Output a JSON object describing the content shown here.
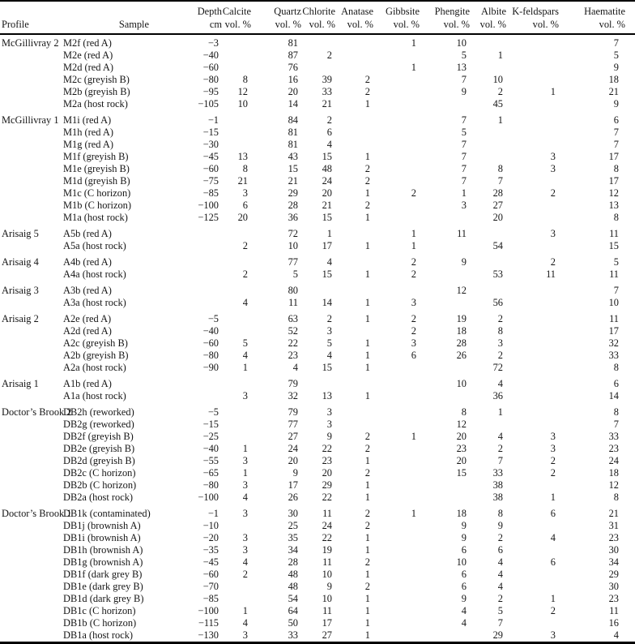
{
  "table": {
    "columns": [
      {
        "id": "profile",
        "label": "Profile",
        "sub": ""
      },
      {
        "id": "sample",
        "label": "Sample",
        "sub": ""
      },
      {
        "id": "depth",
        "label": "Depth",
        "sub": "cm"
      },
      {
        "id": "calcite",
        "label": "Calcite",
        "sub": "vol. %"
      },
      {
        "id": "quartz",
        "label": "Quartz",
        "sub": "vol. %"
      },
      {
        "id": "chlorite",
        "label": "Chlorite",
        "sub": "vol. %"
      },
      {
        "id": "anatase",
        "label": "Anatase",
        "sub": "vol. %"
      },
      {
        "id": "gibbsite",
        "label": "Gibbsite",
        "sub": "vol. %"
      },
      {
        "id": "phengite",
        "label": "Phengite",
        "sub": "vol. %"
      },
      {
        "id": "albite",
        "label": "Albite",
        "sub": "vol. %"
      },
      {
        "id": "kfeldspars",
        "label": "K-feldspars",
        "sub": "vol. %"
      },
      {
        "id": "haematite",
        "label": "Haematite",
        "sub": "vol. %"
      }
    ],
    "groups": [
      {
        "profile": "McGillivray 2",
        "rows": [
          {
            "sample": "M2f (red A)",
            "depth": "−3",
            "calcite": "",
            "quartz": "81",
            "chlorite": "",
            "anatase": "",
            "gibbsite": "1",
            "phengite": "10",
            "albite": "",
            "kfeldspars": "",
            "haematite": "7"
          },
          {
            "sample": "M2e (red A)",
            "depth": "−40",
            "calcite": "",
            "quartz": "87",
            "chlorite": "2",
            "anatase": "",
            "gibbsite": "",
            "phengite": "5",
            "albite": "1",
            "kfeldspars": "",
            "haematite": "5"
          },
          {
            "sample": "M2d (red A)",
            "depth": "−60",
            "calcite": "",
            "quartz": "76",
            "chlorite": "",
            "anatase": "",
            "gibbsite": "1",
            "phengite": "13",
            "albite": "",
            "kfeldspars": "",
            "haematite": "9"
          },
          {
            "sample": "M2c (greyish B)",
            "depth": "−80",
            "calcite": "8",
            "quartz": "16",
            "chlorite": "39",
            "anatase": "2",
            "gibbsite": "",
            "phengite": "7",
            "albite": "10",
            "kfeldspars": "",
            "haematite": "18"
          },
          {
            "sample": "M2b (greyish B)",
            "depth": "−95",
            "calcite": "12",
            "quartz": "20",
            "chlorite": "33",
            "anatase": "2",
            "gibbsite": "",
            "phengite": "9",
            "albite": "2",
            "kfeldspars": "1",
            "haematite": "21"
          },
          {
            "sample": "M2a (host rock)",
            "depth": "−105",
            "calcite": "10",
            "quartz": "14",
            "chlorite": "21",
            "anatase": "1",
            "gibbsite": "",
            "phengite": "",
            "albite": "45",
            "kfeldspars": "",
            "haematite": "9"
          }
        ]
      },
      {
        "profile": "McGillivray 1",
        "rows": [
          {
            "sample": "M1i (red A)",
            "depth": "−1",
            "calcite": "",
            "quartz": "84",
            "chlorite": "2",
            "anatase": "",
            "gibbsite": "",
            "phengite": "7",
            "albite": "1",
            "kfeldspars": "",
            "haematite": "6"
          },
          {
            "sample": "M1h (red A)",
            "depth": "−15",
            "calcite": "",
            "quartz": "81",
            "chlorite": "6",
            "anatase": "",
            "gibbsite": "",
            "phengite": "5",
            "albite": "",
            "kfeldspars": "",
            "haematite": "7"
          },
          {
            "sample": "M1g (red A)",
            "depth": "−30",
            "calcite": "",
            "quartz": "81",
            "chlorite": "4",
            "anatase": "",
            "gibbsite": "",
            "phengite": "7",
            "albite": "",
            "kfeldspars": "",
            "haematite": "7"
          },
          {
            "sample": "M1f (greyish B)",
            "depth": "−45",
            "calcite": "13",
            "quartz": "43",
            "chlorite": "15",
            "anatase": "1",
            "gibbsite": "",
            "phengite": "7",
            "albite": "",
            "kfeldspars": "3",
            "haematite": "17"
          },
          {
            "sample": "M1e (greyish B)",
            "depth": "−60",
            "calcite": "8",
            "quartz": "15",
            "chlorite": "48",
            "anatase": "2",
            "gibbsite": "",
            "phengite": "7",
            "albite": "8",
            "kfeldspars": "3",
            "haematite": "8"
          },
          {
            "sample": "M1d (greyish B)",
            "depth": "−75",
            "calcite": "21",
            "quartz": "21",
            "chlorite": "24",
            "anatase": "2",
            "gibbsite": "",
            "phengite": "7",
            "albite": "7",
            "kfeldspars": "",
            "haematite": "17"
          },
          {
            "sample": "M1c (C horizon)",
            "depth": "−85",
            "calcite": "3",
            "quartz": "29",
            "chlorite": "20",
            "anatase": "1",
            "gibbsite": "2",
            "phengite": "1",
            "albite": "28",
            "kfeldspars": "2",
            "haematite": "12"
          },
          {
            "sample": "M1b (C horizon)",
            "depth": "−100",
            "calcite": "6",
            "quartz": "28",
            "chlorite": "21",
            "anatase": "2",
            "gibbsite": "",
            "phengite": "3",
            "albite": "27",
            "kfeldspars": "",
            "haematite": "13"
          },
          {
            "sample": "M1a (host rock)",
            "depth": "−125",
            "calcite": "20",
            "quartz": "36",
            "chlorite": "15",
            "anatase": "1",
            "gibbsite": "",
            "phengite": "",
            "albite": "20",
            "kfeldspars": "",
            "haematite": "8"
          }
        ]
      },
      {
        "profile": "Arisaig 5",
        "rows": [
          {
            "sample": "A5b (red A)",
            "depth": "",
            "calcite": "",
            "quartz": "72",
            "chlorite": "1",
            "anatase": "",
            "gibbsite": "1",
            "phengite": "11",
            "albite": "",
            "kfeldspars": "3",
            "haematite": "11"
          },
          {
            "sample": "A5a (host rock)",
            "depth": "",
            "calcite": "2",
            "quartz": "10",
            "chlorite": "17",
            "anatase": "1",
            "gibbsite": "1",
            "phengite": "",
            "albite": "54",
            "kfeldspars": "",
            "haematite": "15"
          }
        ]
      },
      {
        "profile": "Arisaig 4",
        "rows": [
          {
            "sample": "A4b (red A)",
            "depth": "",
            "calcite": "",
            "quartz": "77",
            "chlorite": "4",
            "anatase": "",
            "gibbsite": "2",
            "phengite": "9",
            "albite": "",
            "kfeldspars": "2",
            "haematite": "5"
          },
          {
            "sample": "A4a (host rock)",
            "depth": "",
            "calcite": "2",
            "quartz": "5",
            "chlorite": "15",
            "anatase": "1",
            "gibbsite": "2",
            "phengite": "",
            "albite": "53",
            "kfeldspars": "11",
            "haematite": "11"
          }
        ]
      },
      {
        "profile": "Arisaig 3",
        "rows": [
          {
            "sample": "A3b (red A)",
            "depth": "",
            "calcite": "",
            "quartz": "80",
            "chlorite": "",
            "anatase": "",
            "gibbsite": "",
            "phengite": "12",
            "albite": "",
            "kfeldspars": "",
            "haematite": "7"
          },
          {
            "sample": "A3a (host rock)",
            "depth": "",
            "calcite": "4",
            "quartz": "11",
            "chlorite": "14",
            "anatase": "1",
            "gibbsite": "3",
            "phengite": "",
            "albite": "56",
            "kfeldspars": "",
            "haematite": "10"
          }
        ]
      },
      {
        "profile": "Arisaig 2",
        "rows": [
          {
            "sample": "A2e (red A)",
            "depth": "−5",
            "calcite": "",
            "quartz": "63",
            "chlorite": "2",
            "anatase": "1",
            "gibbsite": "2",
            "phengite": "19",
            "albite": "2",
            "kfeldspars": "",
            "haematite": "11"
          },
          {
            "sample": "A2d (red A)",
            "depth": "−40",
            "calcite": "",
            "quartz": "52",
            "chlorite": "3",
            "anatase": "",
            "gibbsite": "2",
            "phengite": "18",
            "albite": "8",
            "kfeldspars": "",
            "haematite": "17"
          },
          {
            "sample": "A2c (greyish B)",
            "depth": "−60",
            "calcite": "5",
            "quartz": "22",
            "chlorite": "5",
            "anatase": "1",
            "gibbsite": "3",
            "phengite": "28",
            "albite": "3",
            "kfeldspars": "",
            "haematite": "32"
          },
          {
            "sample": "A2b (greyish B)",
            "depth": "−80",
            "calcite": "4",
            "quartz": "23",
            "chlorite": "4",
            "anatase": "1",
            "gibbsite": "6",
            "phengite": "26",
            "albite": "2",
            "kfeldspars": "",
            "haematite": "33"
          },
          {
            "sample": "A2a (host rock)",
            "depth": "−90",
            "calcite": "1",
            "quartz": "4",
            "chlorite": "15",
            "anatase": "1",
            "gibbsite": "",
            "phengite": "",
            "albite": "72",
            "kfeldspars": "",
            "haematite": "8"
          }
        ]
      },
      {
        "profile": "Arisaig 1",
        "rows": [
          {
            "sample": "A1b (red A)",
            "depth": "",
            "calcite": "",
            "quartz": "79",
            "chlorite": "",
            "anatase": "",
            "gibbsite": "",
            "phengite": "10",
            "albite": "4",
            "kfeldspars": "",
            "haematite": "6"
          },
          {
            "sample": "A1a (host rock)",
            "depth": "",
            "calcite": "3",
            "quartz": "32",
            "chlorite": "13",
            "anatase": "1",
            "gibbsite": "",
            "phengite": "",
            "albite": "36",
            "kfeldspars": "",
            "haematite": "14"
          }
        ]
      },
      {
        "profile": "Doctor’s Brook 2",
        "rows": [
          {
            "sample": "DB2h (reworked)",
            "depth": "−5",
            "calcite": "",
            "quartz": "79",
            "chlorite": "3",
            "anatase": "",
            "gibbsite": "",
            "phengite": "8",
            "albite": "1",
            "kfeldspars": "",
            "haematite": "8"
          },
          {
            "sample": "DB2g (reworked)",
            "depth": "−15",
            "calcite": "",
            "quartz": "77",
            "chlorite": "3",
            "anatase": "",
            "gibbsite": "",
            "phengite": "12",
            "albite": "",
            "kfeldspars": "",
            "haematite": "7"
          },
          {
            "sample": "DB2f (greyish B)",
            "depth": "−25",
            "calcite": "",
            "quartz": "27",
            "chlorite": "9",
            "anatase": "2",
            "gibbsite": "1",
            "phengite": "20",
            "albite": "4",
            "kfeldspars": "3",
            "haematite": "33"
          },
          {
            "sample": "DB2e (greyish B)",
            "depth": "−40",
            "calcite": "1",
            "quartz": "24",
            "chlorite": "22",
            "anatase": "2",
            "gibbsite": "",
            "phengite": "23",
            "albite": "2",
            "kfeldspars": "3",
            "haematite": "23"
          },
          {
            "sample": "DB2d (greyish B)",
            "depth": "−55",
            "calcite": "3",
            "quartz": "20",
            "chlorite": "23",
            "anatase": "1",
            "gibbsite": "",
            "phengite": "20",
            "albite": "7",
            "kfeldspars": "2",
            "haematite": "24"
          },
          {
            "sample": "DB2c (C horizon)",
            "depth": "−65",
            "calcite": "1",
            "quartz": "9",
            "chlorite": "20",
            "anatase": "2",
            "gibbsite": "",
            "phengite": "15",
            "albite": "33",
            "kfeldspars": "2",
            "haematite": "18"
          },
          {
            "sample": "DB2b (C horizon)",
            "depth": "−80",
            "calcite": "3",
            "quartz": "17",
            "chlorite": "29",
            "anatase": "1",
            "gibbsite": "",
            "phengite": "",
            "albite": "38",
            "kfeldspars": "",
            "haematite": "12"
          },
          {
            "sample": "DB2a (host rock)",
            "depth": "−100",
            "calcite": "4",
            "quartz": "26",
            "chlorite": "22",
            "anatase": "1",
            "gibbsite": "",
            "phengite": "",
            "albite": "38",
            "kfeldspars": "1",
            "haematite": "8"
          }
        ]
      },
      {
        "profile": "Doctor’s Brook 1",
        "rows": [
          {
            "sample": "DB1k (contaminated)",
            "depth": "−1",
            "calcite": "3",
            "quartz": "30",
            "chlorite": "11",
            "anatase": "2",
            "gibbsite": "1",
            "phengite": "18",
            "albite": "8",
            "kfeldspars": "6",
            "haematite": "21"
          },
          {
            "sample": "DB1j (brownish A)",
            "depth": "−10",
            "calcite": "",
            "quartz": "25",
            "chlorite": "24",
            "anatase": "2",
            "gibbsite": "",
            "phengite": "9",
            "albite": "9",
            "kfeldspars": "",
            "haematite": "31"
          },
          {
            "sample": "DB1i (brownish A)",
            "depth": "−20",
            "calcite": "3",
            "quartz": "35",
            "chlorite": "22",
            "anatase": "1",
            "gibbsite": "",
            "phengite": "9",
            "albite": "2",
            "kfeldspars": "4",
            "haematite": "23"
          },
          {
            "sample": "DB1h (brownish A)",
            "depth": "−35",
            "calcite": "3",
            "quartz": "34",
            "chlorite": "19",
            "anatase": "1",
            "gibbsite": "",
            "phengite": "6",
            "albite": "6",
            "kfeldspars": "",
            "haematite": "30"
          },
          {
            "sample": "DB1g (brownish A)",
            "depth": "−45",
            "calcite": "4",
            "quartz": "28",
            "chlorite": "11",
            "anatase": "2",
            "gibbsite": "",
            "phengite": "10",
            "albite": "4",
            "kfeldspars": "6",
            "haematite": "34"
          },
          {
            "sample": "DB1f (dark grey B)",
            "depth": "−60",
            "calcite": "2",
            "quartz": "48",
            "chlorite": "10",
            "anatase": "1",
            "gibbsite": "",
            "phengite": "6",
            "albite": "4",
            "kfeldspars": "",
            "haematite": "29"
          },
          {
            "sample": "DB1e (dark grey B)",
            "depth": "−70",
            "calcite": "",
            "quartz": "48",
            "chlorite": "9",
            "anatase": "2",
            "gibbsite": "",
            "phengite": "6",
            "albite": "4",
            "kfeldspars": "",
            "haematite": "30"
          },
          {
            "sample": "DB1d (dark grey B)",
            "depth": "−85",
            "calcite": "",
            "quartz": "54",
            "chlorite": "10",
            "anatase": "1",
            "gibbsite": "",
            "phengite": "9",
            "albite": "2",
            "kfeldspars": "1",
            "haematite": "23"
          },
          {
            "sample": "DB1c (C horizon)",
            "depth": "−100",
            "calcite": "1",
            "quartz": "64",
            "chlorite": "11",
            "anatase": "1",
            "gibbsite": "",
            "phengite": "4",
            "albite": "5",
            "kfeldspars": "2",
            "haematite": "11"
          },
          {
            "sample": "DB1b (C horizon)",
            "depth": "−115",
            "calcite": "4",
            "quartz": "50",
            "chlorite": "17",
            "anatase": "1",
            "gibbsite": "",
            "phengite": "4",
            "albite": "7",
            "kfeldspars": "",
            "haematite": "16"
          },
          {
            "sample": "DB1a (host rock)",
            "depth": "−130",
            "calcite": "3",
            "quartz": "33",
            "chlorite": "27",
            "anatase": "1",
            "gibbsite": "",
            "phengite": "",
            "albite": "29",
            "kfeldspars": "3",
            "haematite": "4"
          }
        ]
      }
    ]
  }
}
